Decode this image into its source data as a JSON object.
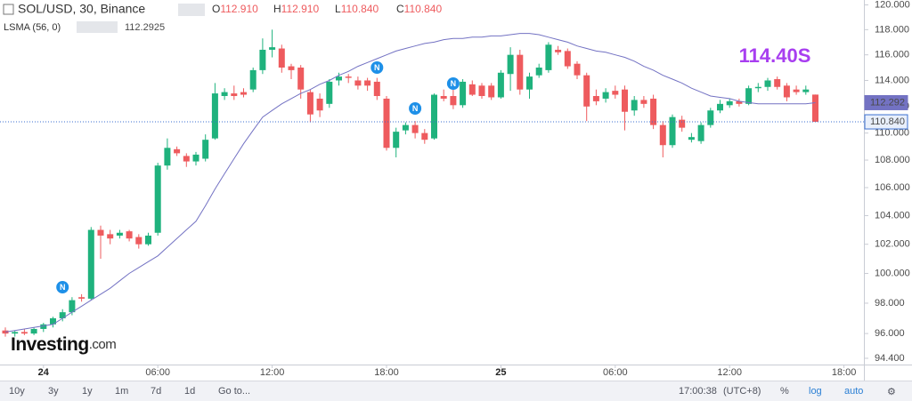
{
  "header": {
    "symbol": "SOL/USD, 30, Binance",
    "ohlc": [
      {
        "label": "O",
        "value": "112.910"
      },
      {
        "label": "H",
        "value": "112.910"
      },
      {
        "label": "L",
        "value": "110.840"
      },
      {
        "label": "C",
        "value": "110.840"
      }
    ],
    "study_value": "112.2925"
  },
  "chart_data": {
    "type": "candlestick",
    "categories": [
      null,
      null,
      null,
      null,
      "24",
      null,
      null,
      null,
      null,
      null,
      null,
      null,
      null,
      null,
      null,
      null,
      "06:00",
      null,
      null,
      null,
      null,
      null,
      null,
      null,
      null,
      null,
      null,
      null,
      "12:00",
      null,
      null,
      null,
      null,
      null,
      null,
      null,
      null,
      null,
      null,
      null,
      "18:00",
      null,
      null,
      null,
      null,
      null,
      null,
      null,
      null,
      null,
      null,
      null,
      "25",
      null,
      null,
      null,
      null,
      null,
      null,
      null,
      null,
      null,
      null,
      null,
      "06:00",
      null,
      null,
      null,
      null,
      null,
      null,
      null,
      null,
      null,
      null,
      null,
      "12:00",
      null,
      null,
      null,
      null,
      null,
      null,
      null,
      null,
      null,
      null,
      null,
      "18:00"
    ],
    "open": [
      96.2,
      96.0,
      96.1,
      96.0,
      96.3,
      96.6,
      97.0,
      97.4,
      98.4,
      98.3,
      103.0,
      102.7,
      102.6,
      102.9,
      102.5,
      102.0,
      102.8,
      107.6,
      108.8,
      108.3,
      107.9,
      108.1,
      109.6,
      112.8,
      113.0,
      113.1,
      113.3,
      114.8,
      116.4,
      116.5,
      115.1,
      115.0,
      113.1,
      112.6,
      112.2,
      114.0,
      114.3,
      114.0,
      114.0,
      113.9,
      112.6,
      108.9,
      110.2,
      110.6,
      110.0,
      109.6,
      112.8,
      112.8,
      112.1,
      113.7,
      113.6,
      113.6,
      112.7,
      114.5,
      116.0,
      113.3,
      114.4,
      114.8,
      116.4,
      116.3,
      115.3,
      114.4,
      112.8,
      112.6,
      113.2,
      113.3,
      111.7,
      112.5,
      112.6,
      110.6,
      109.1,
      111.0,
      109.5,
      109.4,
      110.6,
      111.7,
      112.1,
      112.4,
      112.2,
      113.4,
      113.5,
      114.1,
      113.6,
      113.3,
      113.1,
      112.91,
      null,
      null,
      null
    ],
    "high": [
      96.4,
      96.2,
      96.3,
      96.4,
      96.7,
      97.1,
      97.6,
      98.4,
      98.6,
      103.2,
      103.3,
      103.0,
      103.0,
      103.0,
      102.7,
      102.8,
      107.8,
      109.6,
      109.0,
      108.5,
      108.6,
      109.9,
      113.8,
      113.4,
      113.6,
      113.4,
      115.0,
      117.3,
      118.0,
      116.8,
      115.3,
      115.2,
      113.3,
      113.0,
      114.1,
      114.6,
      114.5,
      114.3,
      114.2,
      114.2,
      112.8,
      110.4,
      110.8,
      110.9,
      110.3,
      113.0,
      113.3,
      113.4,
      114.1,
      114.0,
      113.8,
      113.8,
      114.8,
      116.6,
      116.4,
      114.6,
      115.3,
      117.0,
      116.7,
      116.5,
      115.5,
      114.6,
      113.3,
      113.4,
      113.6,
      113.6,
      112.8,
      112.8,
      112.9,
      110.9,
      111.4,
      111.3,
      110.0,
      110.8,
      111.9,
      112.5,
      112.6,
      112.6,
      113.6,
      113.8,
      114.2,
      114.3,
      113.8,
      113.6,
      113.6,
      112.91,
      null,
      null,
      null
    ],
    "low": [
      95.8,
      95.8,
      95.9,
      95.9,
      96.1,
      96.4,
      96.8,
      97.2,
      98.1,
      98.2,
      101.0,
      102.0,
      102.4,
      102.2,
      101.7,
      101.9,
      102.6,
      107.3,
      108.3,
      107.5,
      107.6,
      107.9,
      109.5,
      112.5,
      112.5,
      112.7,
      113.1,
      114.5,
      115.8,
      114.6,
      114.1,
      112.6,
      110.8,
      111.2,
      111.9,
      113.6,
      113.8,
      113.3,
      113.2,
      112.5,
      108.7,
      108.2,
      109.9,
      109.6,
      109.2,
      109.5,
      112.4,
      111.8,
      111.9,
      112.8,
      112.6,
      112.5,
      112.6,
      113.2,
      112.9,
      112.6,
      114.2,
      114.6,
      116.0,
      114.9,
      114.1,
      110.9,
      112.1,
      112.3,
      112.6,
      110.2,
      111.3,
      111.9,
      110.3,
      108.2,
      108.9,
      110.1,
      109.3,
      109.2,
      110.4,
      111.5,
      111.9,
      112.0,
      112.1,
      113.1,
      113.2,
      113.3,
      112.4,
      112.9,
      112.9,
      110.84,
      null,
      null,
      null
    ],
    "close": [
      96.0,
      96.1,
      96.0,
      96.3,
      96.6,
      97.0,
      97.4,
      98.2,
      98.3,
      103.0,
      102.6,
      102.4,
      102.8,
      102.4,
      102.0,
      102.6,
      107.6,
      108.9,
      108.5,
      107.9,
      108.4,
      109.5,
      113.0,
      113.1,
      112.8,
      112.9,
      114.8,
      116.4,
      116.6,
      115.0,
      114.8,
      113.3,
      111.4,
      111.7,
      113.9,
      114.3,
      114.2,
      113.6,
      113.6,
      112.8,
      108.9,
      110.1,
      110.6,
      110.0,
      109.5,
      112.9,
      112.6,
      112.1,
      113.9,
      112.9,
      112.8,
      112.7,
      114.6,
      116.0,
      113.3,
      114.3,
      115.0,
      116.8,
      116.2,
      115.1,
      114.4,
      112.0,
      112.4,
      113.1,
      112.9,
      111.6,
      112.5,
      112.2,
      110.6,
      109.1,
      111.2,
      110.4,
      109.7,
      110.6,
      111.7,
      112.2,
      112.4,
      112.2,
      113.4,
      113.5,
      114.0,
      113.5,
      112.7,
      113.1,
      113.3,
      110.84,
      null,
      null,
      null
    ],
    "up_color": "#1fb27d",
    "down_color": "#ee5b5e",
    "series": [
      {
        "name": "LSMA (56, 0)",
        "color": "#7372c3",
        "values": [
          96.1,
          96.2,
          96.3,
          96.4,
          96.5,
          96.6,
          97.0,
          97.4,
          97.8,
          98.2,
          98.6,
          99.0,
          99.5,
          100.0,
          100.4,
          100.8,
          101.2,
          101.8,
          102.4,
          103.0,
          103.6,
          104.7,
          105.9,
          107.0,
          108.1,
          109.2,
          110.2,
          111.2,
          111.7,
          112.2,
          112.6,
          113.0,
          113.3,
          113.7,
          114.0,
          114.4,
          114.7,
          115.1,
          115.4,
          115.7,
          116.0,
          116.3,
          116.5,
          116.7,
          116.9,
          117.0,
          117.2,
          117.3,
          117.3,
          117.4,
          117.4,
          117.5,
          117.5,
          117.6,
          117.7,
          117.7,
          117.6,
          117.4,
          117.2,
          117.0,
          116.7,
          116.5,
          116.3,
          116.2,
          116.0,
          115.8,
          115.5,
          115.1,
          114.8,
          114.4,
          114.1,
          113.8,
          113.4,
          113.1,
          112.8,
          112.7,
          112.6,
          112.4,
          112.3,
          112.2,
          112.2,
          112.2,
          112.2,
          112.2,
          112.2,
          112.2925,
          null,
          null,
          null
        ]
      }
    ],
    "ylim": [
      94.0,
      120.4
    ],
    "yticks": [
      {
        "value": 94.4,
        "label": "94.400"
      },
      {
        "value": 96,
        "label": "96.000"
      },
      {
        "value": 98,
        "label": "98.000"
      },
      {
        "value": 100,
        "label": "100.000"
      },
      {
        "value": 102,
        "label": "102.000"
      },
      {
        "value": 104,
        "label": "104.000"
      },
      {
        "value": 106,
        "label": "106.000"
      },
      {
        "value": 108,
        "label": "108.000"
      },
      {
        "value": 110,
        "label": "110.000"
      },
      {
        "value": 112,
        "label": "112.000"
      },
      {
        "value": 114,
        "label": "114.000"
      },
      {
        "value": 116,
        "label": "116.000"
      },
      {
        "value": 118,
        "label": "118.000"
      },
      {
        "value": 120,
        "label": "120.000"
      }
    ],
    "log_scale": true,
    "price_tags": [
      "112.292",
      "110.840"
    ],
    "annotation": "114.40S",
    "event_label": "N"
  },
  "watermark": {
    "brand": "Investing",
    "suffix": ".com"
  },
  "toolbar": {
    "ranges": [
      "10y",
      "3y",
      "1y",
      "1m",
      "7d",
      "1d"
    ],
    "goto": "Go to...",
    "time": "17:00:38",
    "timezone": "(UTC+8)",
    "percent": "%",
    "log": "log",
    "auto": "auto"
  }
}
